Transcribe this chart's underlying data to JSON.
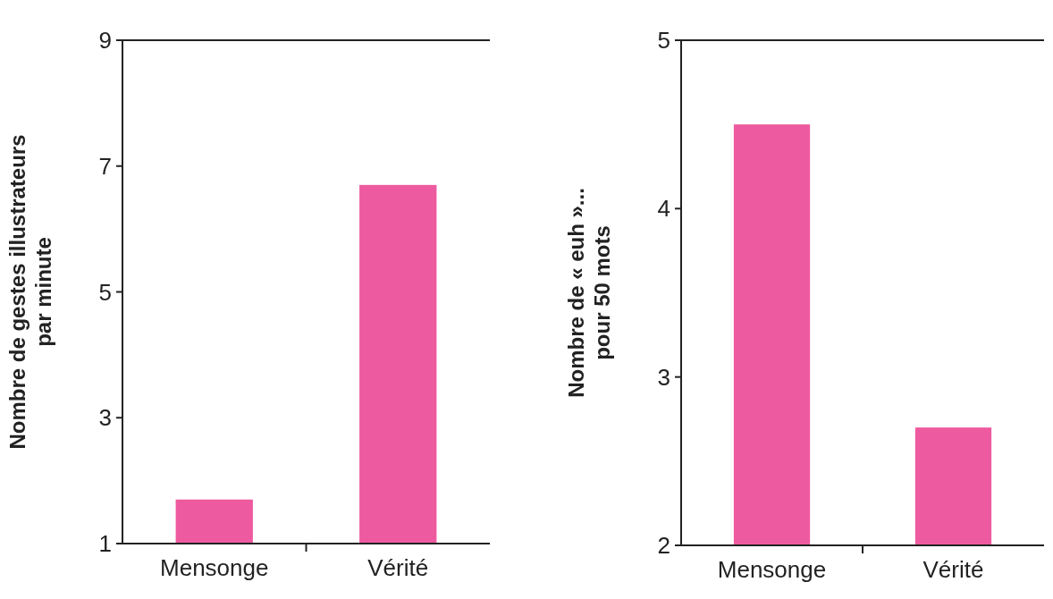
{
  "chart_data": [
    {
      "type": "bar",
      "categories": [
        "Mensonge",
        "Vérité"
      ],
      "values": [
        1.7,
        6.7
      ],
      "color": "#ee5a9f",
      "ylabel": "Nombre de gestes illustrateurs\npar minute",
      "ylim": [
        1,
        9
      ],
      "yticks": [
        1,
        3,
        5,
        7,
        9
      ]
    },
    {
      "type": "bar",
      "categories": [
        "Mensonge",
        "Vérité"
      ],
      "values": [
        4.5,
        2.7
      ],
      "color": "#ee5a9f",
      "ylabel": "Nombre de « euh »...\npour 50 mots",
      "ylim": [
        2,
        5
      ],
      "yticks": [
        2,
        3,
        4,
        5
      ]
    }
  ]
}
